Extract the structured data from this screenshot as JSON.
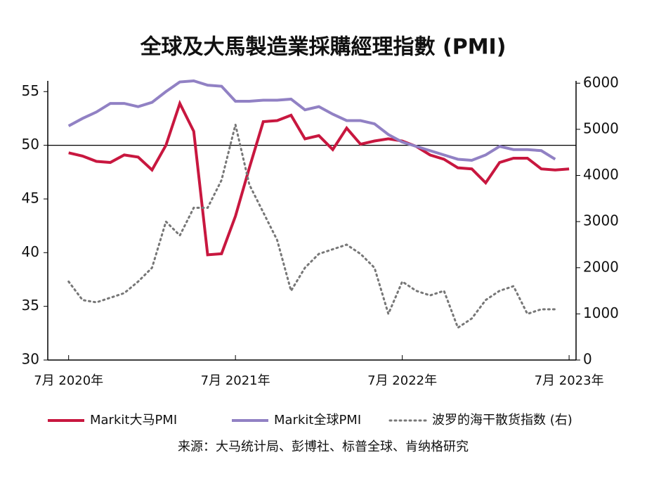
{
  "chart_data": {
    "type": "line",
    "title": "全球及大馬製造業採購經理指數 (PMI)",
    "x": [
      0,
      1,
      2,
      3,
      4,
      5,
      6,
      7,
      8,
      9,
      10,
      11,
      12,
      13,
      14,
      15,
      16,
      17,
      18,
      19,
      20,
      21,
      22,
      23,
      24,
      25,
      26,
      27,
      28,
      29,
      30,
      31,
      32,
      33,
      34,
      35,
      36
    ],
    "xlim": [
      -1.5,
      36.5
    ],
    "xticks": [
      {
        "value": 0,
        "label": "7月 2020年"
      },
      {
        "value": 12,
        "label": "7月 2021年"
      },
      {
        "value": 24,
        "label": "7月 2022年"
      },
      {
        "value": 36,
        "label": "7月 2023年"
      }
    ],
    "ylim": [
      30,
      56
    ],
    "yticks": [
      30,
      35,
      40,
      45,
      50,
      55
    ],
    "y2lim": [
      0,
      6050
    ],
    "y2ticks": [
      0,
      1000,
      2000,
      3000,
      4000,
      5000,
      6000
    ],
    "reference_line": 50,
    "series": [
      {
        "name": "Markit大马PMI",
        "color": "#c8173f",
        "values": [
          49.3,
          49.0,
          48.5,
          48.4,
          49.1,
          48.9,
          47.7,
          50.0,
          53.9,
          51.3,
          39.8,
          39.9,
          43.4,
          47.9,
          52.2,
          52.3,
          52.8,
          50.6,
          50.9,
          49.6,
          51.6,
          50.1,
          50.4,
          50.6,
          50.4,
          49.9,
          49.1,
          48.7,
          47.9,
          47.8,
          46.5,
          48.4,
          48.8,
          48.8,
          47.8,
          47.7,
          47.8
        ]
      },
      {
        "name": "Markit全球PMI",
        "color": "#9181c4",
        "values": [
          51.8,
          52.5,
          53.1,
          53.9,
          53.9,
          53.6,
          54.0,
          55.0,
          55.9,
          56.0,
          55.6,
          55.5,
          54.1,
          54.1,
          54.2,
          54.2,
          54.3,
          53.3,
          53.6,
          52.9,
          52.3,
          52.3,
          52.0,
          51.0,
          50.3,
          49.9,
          49.5,
          49.1,
          48.7,
          48.6,
          49.1,
          49.9,
          49.6,
          49.6,
          49.5,
          48.7,
          null
        ]
      },
      {
        "name": "波罗的海干散货指数 (右)",
        "color": "#777777",
        "axis": "y2",
        "dashed": true,
        "values": [
          1700,
          1300,
          1250,
          1350,
          1450,
          1700,
          2000,
          3000,
          2700,
          3300,
          3300,
          3900,
          5100,
          3800,
          3200,
          2600,
          1500,
          2000,
          2300,
          2400,
          2500,
          2300,
          2000,
          1000,
          1700,
          1500,
          1400,
          1500,
          700,
          900,
          1300,
          1500,
          1600,
          1000,
          1100,
          1100,
          null
        ]
      }
    ],
    "source": "来源：大马统计局、彭博社、标普全球、肯纳格研究"
  }
}
